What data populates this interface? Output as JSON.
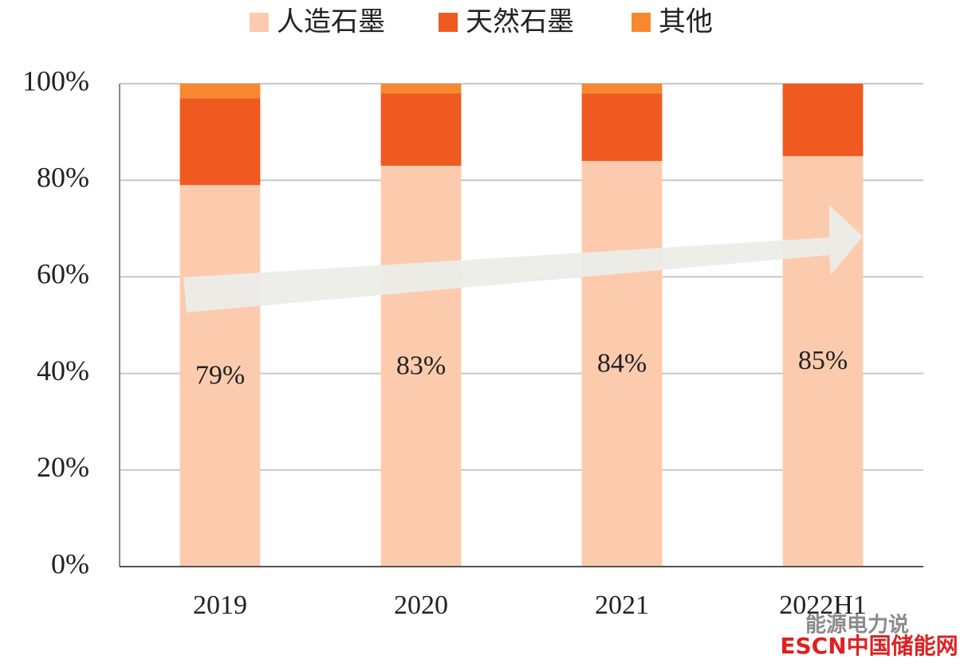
{
  "chart_data": {
    "type": "stacked_bar",
    "categories": [
      "2019",
      "2020",
      "2021",
      "2022H1"
    ],
    "series": [
      {
        "name": "人造石墨",
        "color": "#fccbad",
        "values": [
          79,
          83,
          84,
          85
        ],
        "value_labels": [
          "79%",
          "83%",
          "84%",
          "85%"
        ]
      },
      {
        "name": "天然石墨",
        "color": "#ef5a21",
        "values": [
          18,
          15,
          14,
          15
        ]
      },
      {
        "name": "其他",
        "color": "#f7882f",
        "values": [
          3,
          2,
          2,
          0
        ]
      }
    ],
    "ylim": [
      0,
      100
    ],
    "yticks": [
      {
        "value": 0,
        "label": "0%"
      },
      {
        "value": 20,
        "label": "20%"
      },
      {
        "value": 40,
        "label": "40%"
      },
      {
        "value": 60,
        "label": "60%"
      },
      {
        "value": 80,
        "label": "80%"
      },
      {
        "value": 100,
        "label": "100%"
      }
    ],
    "grid": true,
    "legend": "top"
  },
  "watermarks": [
    "能源电力说",
    "ESCN中国储能网"
  ]
}
